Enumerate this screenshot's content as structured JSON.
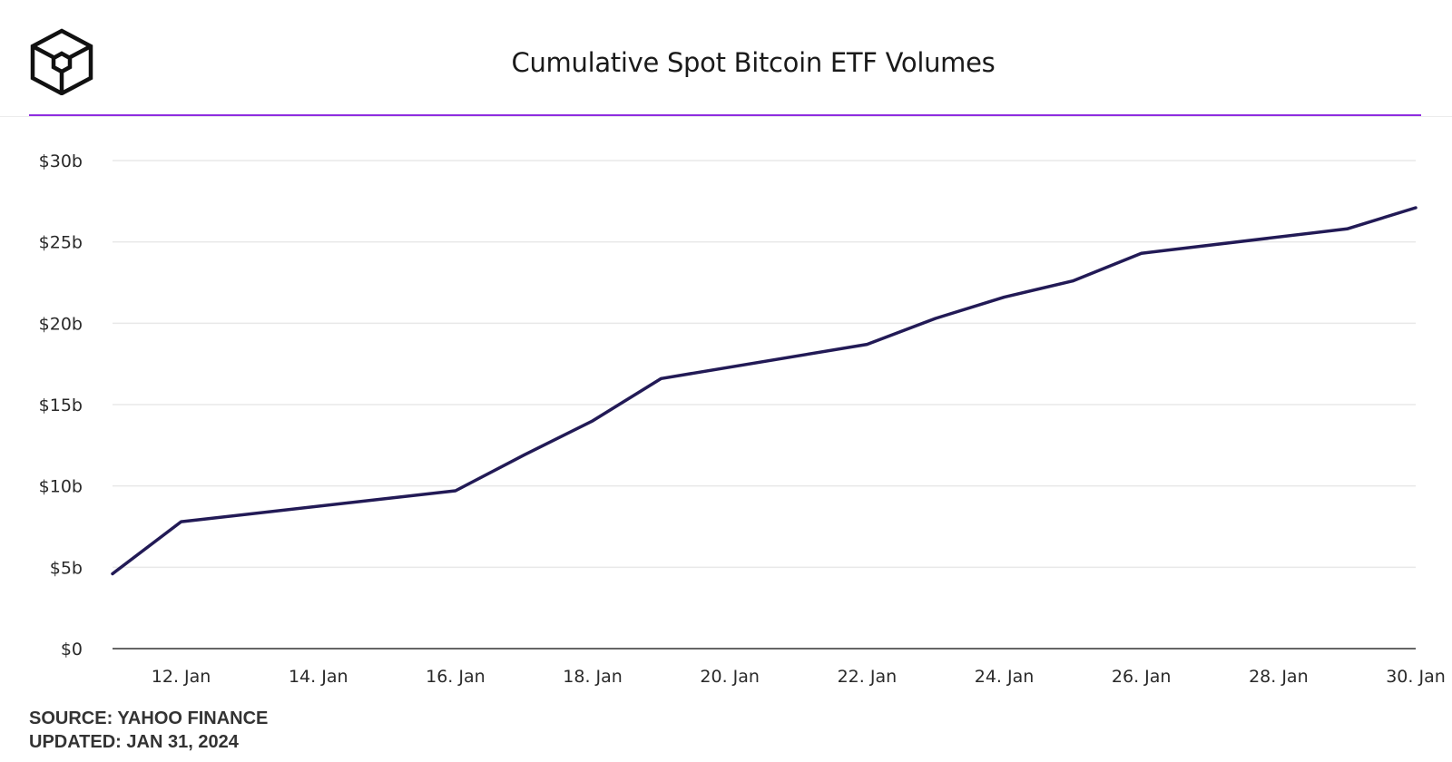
{
  "title": "Cumulative Spot Bitcoin ETF Volumes",
  "footer": {
    "source": "SOURCE: YAHOO FINANCE",
    "updated": "UPDATED: JAN 31, 2024"
  },
  "colors": {
    "accent": "#8e2de0",
    "line": "#221a56",
    "grid": "#e8e8e8",
    "axis": "#333333"
  },
  "logo_icon": "cube-logo-icon",
  "chart_data": {
    "type": "line",
    "title": "Cumulative Spot Bitcoin ETF Volumes",
    "xlabel": "",
    "ylabel": "",
    "grid": true,
    "legend": "none",
    "xlim": [
      "2024-01-11",
      "2024-01-30"
    ],
    "ylim": [
      0,
      30
    ],
    "y_ticks": [
      0,
      5,
      10,
      15,
      20,
      25,
      30
    ],
    "y_tick_labels": [
      "$0",
      "$5b",
      "$10b",
      "$15b",
      "$20b",
      "$25b",
      "$30b"
    ],
    "x_ticks": [
      "2024-01-12",
      "2024-01-14",
      "2024-01-16",
      "2024-01-18",
      "2024-01-20",
      "2024-01-22",
      "2024-01-24",
      "2024-01-26",
      "2024-01-28",
      "2024-01-30"
    ],
    "x_tick_labels": [
      "12. Jan",
      "14. Jan",
      "16. Jan",
      "18. Jan",
      "20. Jan",
      "22. Jan",
      "24. Jan",
      "26. Jan",
      "28. Jan",
      "30. Jan"
    ],
    "series": [
      {
        "x": [
          "2024-01-11",
          "2024-01-12",
          "2024-01-16",
          "2024-01-17",
          "2024-01-18",
          "2024-01-19",
          "2024-01-22",
          "2024-01-23",
          "2024-01-24",
          "2024-01-25",
          "2024-01-26",
          "2024-01-29",
          "2024-01-30"
        ],
        "values": [
          4.6,
          7.8,
          9.7,
          11.9,
          14.0,
          16.6,
          18.7,
          20.3,
          21.6,
          22.6,
          24.3,
          25.8,
          27.1
        ]
      }
    ]
  }
}
